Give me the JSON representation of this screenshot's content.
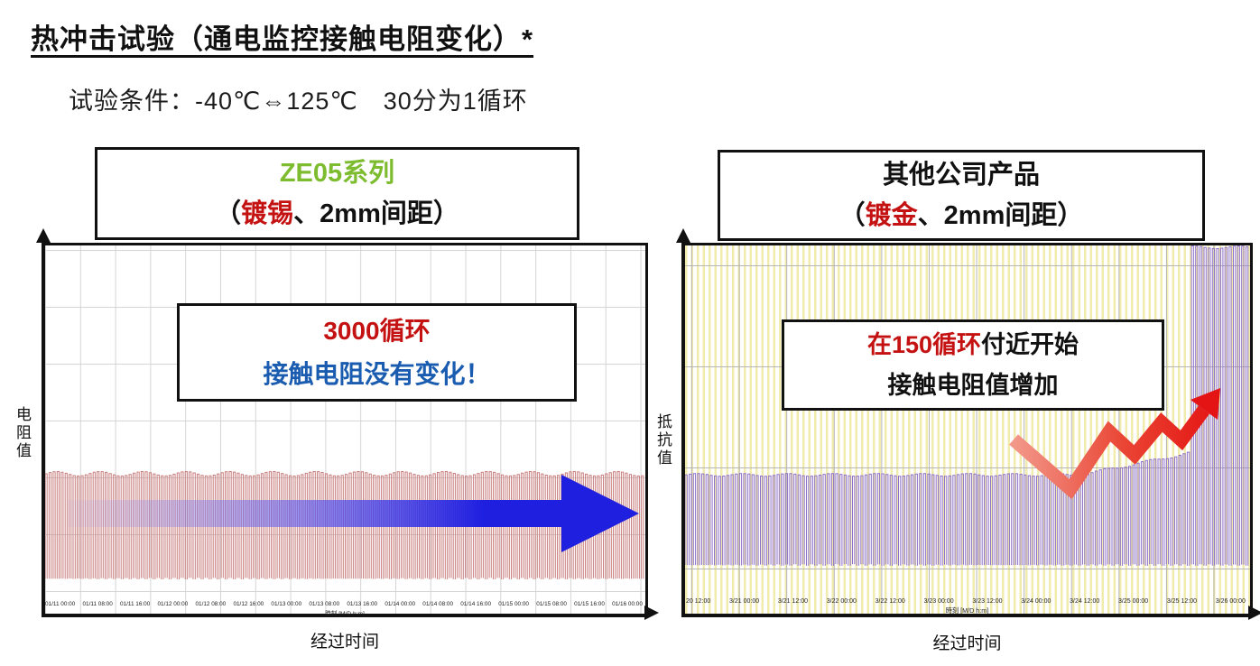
{
  "page": {
    "title": "热冲击试验（通电监控接触电阻变化）*",
    "condition": "试验条件：-40℃⇔125℃　30分为1循环"
  },
  "left_panel": {
    "header_line1": "ZE05系列",
    "header_line2": {
      "open": "（",
      "highlight": "镀锡",
      "rest": "、2mm间距）"
    },
    "annotation_line1": "3000循环",
    "annotation_line2": "接触电阻没有变化！",
    "y_axis": "电阻值",
    "x_axis": "经过时间"
  },
  "right_panel": {
    "header_line1": "其他公司产品",
    "header_line2": {
      "open": "（",
      "highlight": "镀金",
      "rest": "、2mm间距）"
    },
    "annotation_line1_red": "在150循环",
    "annotation_line1_rest": "付近开始",
    "annotation_line2": "接触电阻值增加",
    "y_axis": "抵抗值",
    "x_axis": "经过时间"
  },
  "chart_data": [
    {
      "id": "left",
      "type": "line",
      "title": "ZE05系列（镀锡、2mm间距）通电监控接触电阻",
      "xlabel": "经过时间",
      "ylabel": "电阻值",
      "x_unit_label": "時刻 [M/D h:m]",
      "x_ticks": [
        "01/11 00:00",
        "01/11 08:00",
        "01/11 16:00",
        "01/12 00:00",
        "01/12 08:00",
        "01/12 16:00",
        "01/13 00:00",
        "01/13 08:00",
        "01/13 16:00",
        "01/14 00:00",
        "01/14 08:00",
        "01/14 16:00",
        "01/15 00:00",
        "01/15 08:00",
        "01/15 16:00",
        "01/16 00:00"
      ],
      "behavior": "接触电阻周期性波动但保持稳定：3000循环无变化",
      "annotation": "3000循环 接触电阻没有变化！",
      "grid": true,
      "wave": {
        "cycles_drawn": 150,
        "band": {
          "top_frac": 0.62,
          "bottom_frac": 0.905
        },
        "color": "#c97d7d",
        "jitter": 2.5
      }
    },
    {
      "id": "right",
      "type": "line",
      "title": "其他公司产品（镀金、2mm间距）通电监控接触电阻",
      "xlabel": "经过时间",
      "ylabel": "抵抗值",
      "x_unit_label": "時刻 [M/D h:m]",
      "x_ticks": [
        "20 12:00",
        "3/21 00:00",
        "3/21 12:00",
        "3/22 00:00",
        "3/22 12:00",
        "3/23 00:00",
        "3/23 12:00",
        "3/24 00:00",
        "3/24 12:00",
        "3/25 00:00",
        "3/25 12:00",
        "3/26 00:00"
      ],
      "behavior": "在约150循环后接触电阻值开始增加，试验末期（3/26附近）急剧上升到满量程",
      "annotation": "在150循环付近开始 接触电阻值增加",
      "grid": true,
      "wave": {
        "cycles_drawn": 135,
        "band": {
          "top_frac": 0.623,
          "bottom_frac": 0.868
        },
        "color": "#8e6fc8",
        "jitter": 1.5,
        "rise": {
          "start_frac": 0.7,
          "amount_frac": 0.06
        },
        "spike_start_frac": 0.893
      }
    }
  ],
  "colors": {
    "green_accent": "#7DBB2F",
    "red_accent": "#C41212",
    "blue_text": "#1A5CB0",
    "blue_arrow": "#1F1FE0",
    "red_wave": "#C97D7D",
    "purple_wave": "#8E6FC8",
    "yellow_stripe": "#F1ECAE",
    "red_arrow": "#E41414"
  }
}
